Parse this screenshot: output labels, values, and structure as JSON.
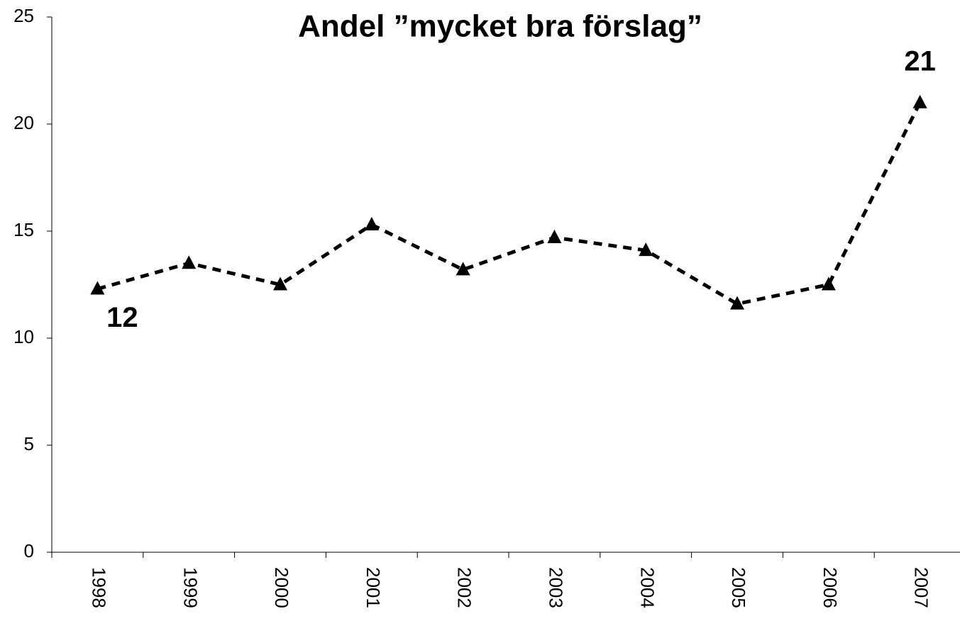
{
  "chart_data": {
    "type": "line",
    "title": "Andel ”mycket bra förslag”",
    "categories": [
      "1998",
      "1999",
      "2000",
      "2001",
      "2002",
      "2003",
      "2004",
      "2005",
      "2006",
      "2007"
    ],
    "series": [
      {
        "name": "Andel",
        "color": "#000000",
        "values": [
          12.3,
          13.5,
          12.5,
          15.3,
          13.2,
          14.7,
          14.1,
          11.6,
          12.5,
          21.0
        ],
        "value_labels": [
          "12",
          null,
          null,
          null,
          null,
          null,
          null,
          null,
          null,
          "21"
        ]
      }
    ],
    "ylim": [
      0,
      25
    ],
    "yticks": [
      0,
      5,
      10,
      15,
      20,
      25
    ],
    "grid": false
  }
}
